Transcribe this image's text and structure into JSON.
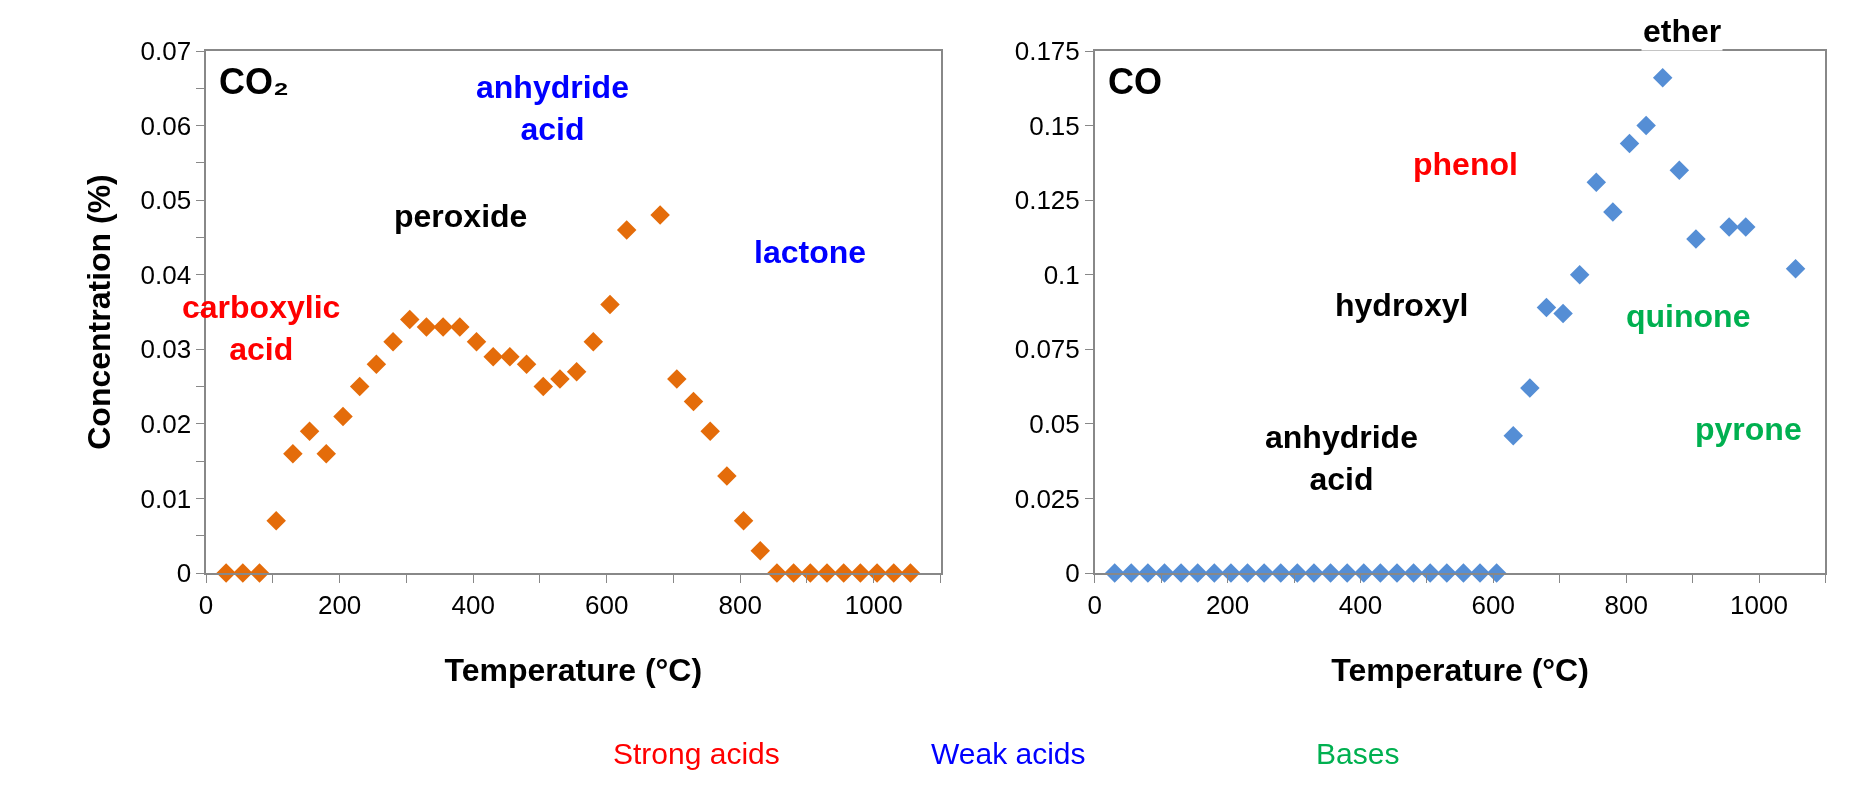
{
  "chart_data": [
    {
      "type": "scatter",
      "xlabel": "Temperature (°C)",
      "ylabel": "Concentration (%)",
      "marker": "diamond",
      "xlim": [
        0,
        1100
      ],
      "ylim": [
        0,
        0.07
      ],
      "xticks": [
        0,
        {
          "value": 100,
          "label": null
        },
        200,
        {
          "value": 300,
          "label": null
        },
        400,
        {
          "value": 500,
          "label": null
        },
        600,
        {
          "value": 700,
          "label": null
        },
        800,
        {
          "value": 900,
          "label": null
        },
        1000,
        {
          "value": 1100,
          "label": null
        }
      ],
      "yticks": [
        0,
        {
          "value": 0.005,
          "label": null
        },
        0.01,
        {
          "value": 0.015,
          "label": null
        },
        0.02,
        {
          "value": 0.025,
          "label": null
        },
        0.03,
        {
          "value": 0.035,
          "label": null
        },
        0.04,
        {
          "value": 0.045,
          "label": null
        },
        0.05,
        {
          "value": 0.055,
          "label": null
        },
        0.06,
        {
          "value": 0.065,
          "label": null
        },
        0.07
      ],
      "series": [
        {
          "color": "#e46c0a",
          "x": [
            30,
            55,
            80,
            105,
            130,
            155,
            180,
            205,
            230,
            255,
            280,
            305,
            330,
            355,
            380,
            405,
            430,
            455,
            480,
            505,
            530,
            555,
            580,
            605,
            630,
            680,
            705,
            730,
            755,
            780,
            805,
            830,
            855,
            880,
            905,
            930,
            955,
            980,
            1005,
            1030,
            1055
          ],
          "values": [
            0,
            0,
            0,
            0.007,
            0.016,
            0.019,
            0.016,
            0.021,
            0.025,
            0.028,
            0.031,
            0.034,
            0.033,
            0.033,
            0.033,
            0.031,
            0.029,
            0.029,
            0.028,
            0.025,
            0.026,
            0.027,
            0.031,
            0.036,
            0.046,
            0.048,
            0.026,
            0.023,
            0.019,
            0.013,
            0.007,
            0.003,
            0,
            0,
            0,
            0,
            0,
            0,
            0,
            0,
            0
          ]
        }
      ],
      "annotations": [
        "CO₂",
        "carboxylic\nacid",
        "peroxide",
        "anhydride\nacid",
        "lactone",
        "Strong acids",
        "Weak acids",
        "Bases"
      ]
    },
    {
      "type": "scatter",
      "xlabel": "Temperature (°C)",
      "marker": "diamond",
      "xlim": [
        0,
        1100
      ],
      "ylim": [
        0,
        0.175
      ],
      "xticks": [
        0,
        {
          "value": 100,
          "label": null
        },
        200,
        {
          "value": 300,
          "label": null
        },
        400,
        {
          "value": 500,
          "label": null
        },
        600,
        {
          "value": 700,
          "label": null
        },
        800,
        {
          "value": 900,
          "label": null
        },
        1000,
        {
          "value": 1100,
          "label": null
        }
      ],
      "yticks": [
        0,
        0.025,
        0.05,
        0.075,
        0.1,
        0.125,
        0.15,
        0.175
      ],
      "series": [
        {
          "color": "#558ed5",
          "x": [
            30,
            55,
            80,
            105,
            130,
            155,
            180,
            205,
            230,
            255,
            280,
            305,
            330,
            355,
            380,
            405,
            430,
            455,
            480,
            505,
            530,
            555,
            580,
            605,
            630,
            655,
            680,
            705,
            730,
            755,
            780,
            805,
            830,
            855,
            880,
            905,
            955,
            980,
            1055
          ],
          "values": [
            0,
            0,
            0,
            0,
            0,
            0,
            0,
            0,
            0,
            0,
            0,
            0,
            0,
            0,
            0,
            0,
            0,
            0,
            0,
            0,
            0,
            0,
            0,
            0,
            0.046,
            0.062,
            0.089,
            0.087,
            0.1,
            0.131,
            0.121,
            0.144,
            0.15,
            0.166,
            0.135,
            0.112,
            0.116,
            0.116,
            0.102
          ]
        }
      ],
      "annotations": [
        "CO",
        "ether",
        "phenol",
        "hydroxyl",
        "quinone",
        "anhydride\nacid",
        "pyrone"
      ]
    }
  ]
}
